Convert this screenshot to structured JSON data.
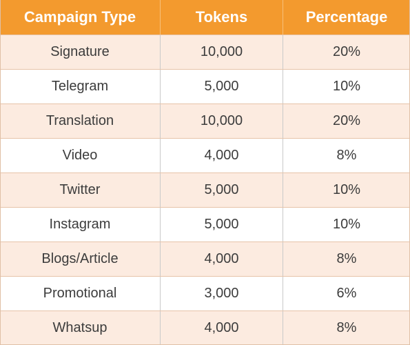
{
  "table": {
    "headers": [
      "Campaign Type",
      "Tokens",
      "Percentage"
    ],
    "rows": [
      [
        "Signature",
        "10,000",
        "20%"
      ],
      [
        "Telegram",
        "5,000",
        "10%"
      ],
      [
        "Translation",
        "10,000",
        "20%"
      ],
      [
        "Video",
        "4,000",
        "8%"
      ],
      [
        "Twitter",
        "5,000",
        "10%"
      ],
      [
        "Instagram",
        "5,000",
        "10%"
      ],
      [
        "Blogs/Article",
        "4,000",
        "8%"
      ],
      [
        "Promotional",
        "3,000",
        "6%"
      ],
      [
        "Whatsup",
        "4,000",
        "8%"
      ]
    ]
  },
  "colors": {
    "header_bg": "#f39a2e",
    "header_text": "#ffffff",
    "row_alt_bg": "#fcebe0",
    "row_bg": "#ffffff",
    "body_text": "#3c3c3c"
  }
}
